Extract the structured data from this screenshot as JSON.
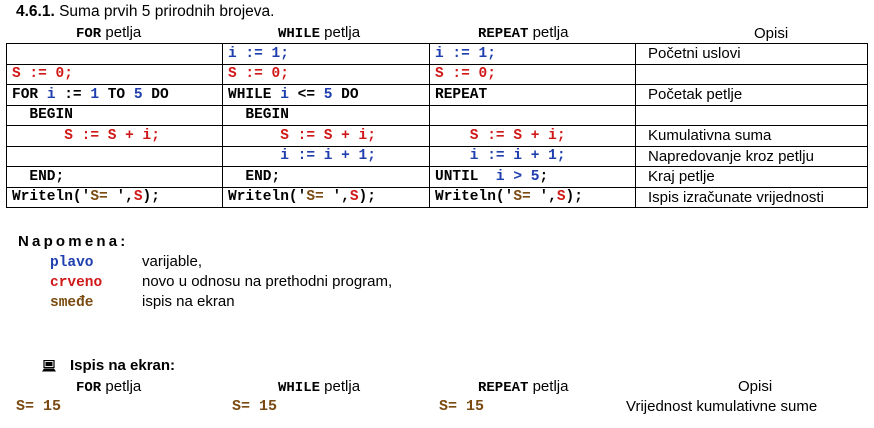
{
  "heading": {
    "number": "4.6.1.",
    "text": "Suma prvih 5 prirodnih brojeva."
  },
  "column_headers": [
    {
      "keyword": "FOR",
      "rest": " petlja"
    },
    {
      "keyword": "WHILE",
      "rest": " petlja"
    },
    {
      "keyword": "REPEAT",
      "rest": " petlja"
    },
    {
      "keyword": "",
      "rest": "Opisi"
    }
  ],
  "rows": [
    {
      "for": [],
      "while": [
        [
          "i := 1;",
          "blue"
        ]
      ],
      "repeat": [
        [
          "i := 1;",
          "blue"
        ]
      ],
      "desc": "Početni uslovi"
    },
    {
      "for": [
        [
          "S := 0;",
          "red"
        ]
      ],
      "while": [
        [
          "S := 0;",
          "red"
        ]
      ],
      "repeat": [
        [
          "S := 0;",
          "red"
        ]
      ],
      "desc": ""
    },
    {
      "for": [
        [
          "FOR ",
          "black"
        ],
        [
          "i",
          "blue"
        ],
        [
          " := ",
          "black"
        ],
        [
          "1",
          "blue"
        ],
        [
          " TO ",
          "black"
        ],
        [
          "5",
          "blue"
        ],
        [
          " DO",
          "black"
        ]
      ],
      "while": [
        [
          "WHILE ",
          "black"
        ],
        [
          "i",
          "blue"
        ],
        [
          " <= ",
          "black"
        ],
        [
          "5",
          "blue"
        ],
        [
          " DO",
          "black"
        ]
      ],
      "repeat": [
        [
          "REPEAT",
          "black"
        ]
      ],
      "desc": "Početak petlje"
    },
    {
      "for": [
        [
          "  BEGIN",
          "black"
        ]
      ],
      "while": [
        [
          "  BEGIN",
          "black"
        ]
      ],
      "repeat": [],
      "desc": ""
    },
    {
      "for": [
        [
          "      S := S + i;",
          "red"
        ]
      ],
      "while": [
        [
          "      S := S + i;",
          "red"
        ]
      ],
      "repeat": [
        [
          "    S := S + i;",
          "red"
        ]
      ],
      "desc": "Kumulativna suma"
    },
    {
      "for": [],
      "while": [
        [
          "      i := i + 1;",
          "blue"
        ]
      ],
      "repeat": [
        [
          "    i := i + 1;",
          "blue"
        ]
      ],
      "desc": "Napredovanje kroz petlju"
    },
    {
      "for": [
        [
          "  END;",
          "black"
        ]
      ],
      "while": [
        [
          "  END;",
          "black"
        ]
      ],
      "repeat": [
        [
          "UNTIL  ",
          "black"
        ],
        [
          "i > 5",
          "blue"
        ],
        [
          ";",
          "black"
        ]
      ],
      "desc": "Kraj petlje"
    },
    {
      "for": [
        [
          "Writeln('",
          "black"
        ],
        [
          "S= ",
          "brown"
        ],
        [
          "',",
          "black"
        ],
        [
          "S",
          "red"
        ],
        [
          ");",
          "black"
        ]
      ],
      "while": [
        [
          "Writeln('",
          "black"
        ],
        [
          "S= ",
          "brown"
        ],
        [
          "',",
          "black"
        ],
        [
          "S",
          "red"
        ],
        [
          ");",
          "black"
        ]
      ],
      "repeat": [
        [
          "Writeln('",
          "black"
        ],
        [
          "S= ",
          "brown"
        ],
        [
          "',",
          "black"
        ],
        [
          "S",
          "red"
        ],
        [
          ");",
          "black"
        ]
      ],
      "desc": "Ispis izračunate vrijednosti"
    }
  ],
  "note": {
    "title": "Napomena:",
    "legend": [
      {
        "term": "plavo",
        "color": "#1f3fae",
        "text": "varijable,"
      },
      {
        "term": "crveno",
        "color": "#d01818",
        "text": "novo u odnosu na prethodni program,"
      },
      {
        "term": "smeđe",
        "color": "#7a4a10",
        "text": "ispis na ekran"
      }
    ]
  },
  "output": {
    "icon": "computer-icon",
    "title": "Ispis na ekran:",
    "values": [
      "S= 15",
      "S= 15",
      "S= 15",
      "Vrijednost kumulativne sume"
    ]
  }
}
